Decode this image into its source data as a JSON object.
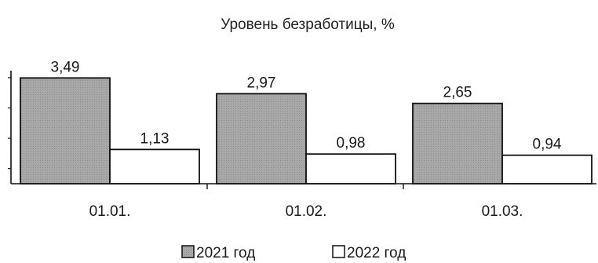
{
  "chart_data": {
    "type": "bar",
    "title": "Уровень безработицы, %",
    "categories": [
      "01.01.",
      "01.02.",
      "01.03."
    ],
    "series": [
      {
        "name": "2021 год",
        "values": [
          3.49,
          2.97,
          2.65
        ],
        "labels": [
          "3,49",
          "2,97",
          "2,65"
        ],
        "color": "#a8a8a8"
      },
      {
        "name": "2022 год",
        "values": [
          1.13,
          0.98,
          0.94
        ],
        "labels": [
          "1,13",
          "0,98",
          "0,94"
        ],
        "color": "#ffffff"
      }
    ],
    "ylim": [
      0,
      3.5
    ],
    "grid": false,
    "legend_position": "bottom"
  }
}
